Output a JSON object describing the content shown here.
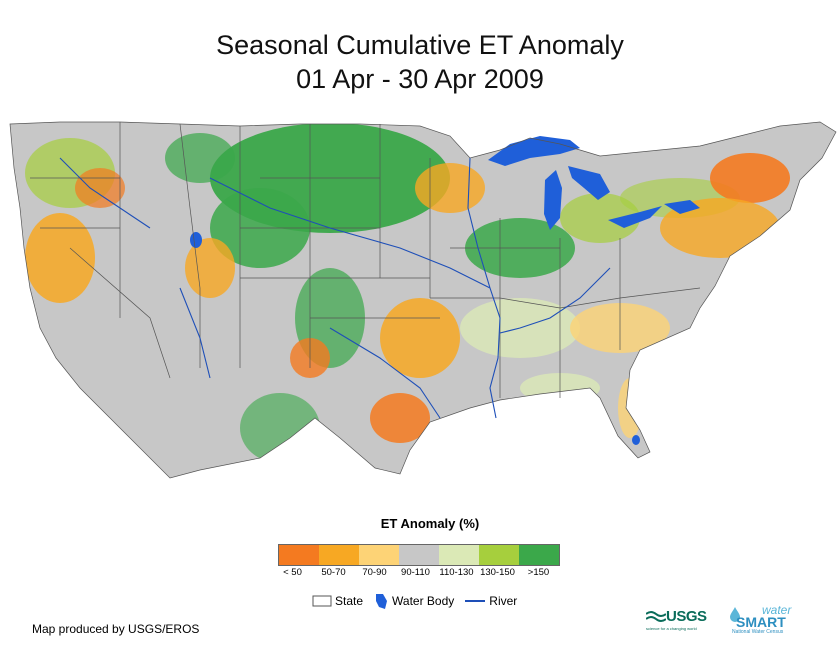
{
  "title": {
    "line1": "Seasonal Cumulative ET Anomaly",
    "line2": "01 Apr - 30 Apr 2009"
  },
  "legend": {
    "title": "ET Anomaly (%)",
    "classes": [
      {
        "label": "< 50",
        "color": "#f47a20"
      },
      {
        "label": "50-70",
        "color": "#f7a823"
      },
      {
        "label": "70-90",
        "color": "#fdd376"
      },
      {
        "label": "90-110",
        "color": "#c7c7c7"
      },
      {
        "label": "110-130",
        "color": "#dbe9b6"
      },
      {
        "label": "130-150",
        "color": "#a6cf3d"
      },
      {
        "label": ">150",
        "color": "#3ba84a"
      }
    ]
  },
  "features": {
    "state": "State",
    "water_body": "Water Body",
    "river": "River"
  },
  "credit": "Map produced by USGS/EROS",
  "logos": {
    "usgs": "USGS",
    "usgs_tagline": "science for a changing world",
    "water": "water",
    "smart": "SMART",
    "national_water_census": "National Water Census"
  },
  "colors": {
    "water": "#1f5fd9",
    "river": "#1e4fb8",
    "state_line": "#555555"
  }
}
